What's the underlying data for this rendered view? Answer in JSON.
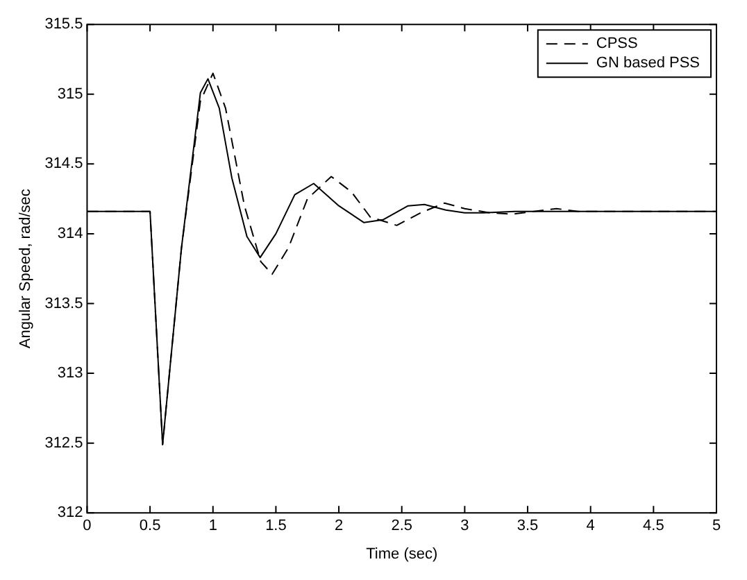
{
  "chart_data": {
    "type": "line",
    "xlabel": "Time (sec)",
    "ylabel": "Angular Speed, rad/sec",
    "xlim": [
      0,
      5
    ],
    "xticks": [
      0,
      0.5,
      1,
      1.5,
      2,
      2.5,
      3,
      3.5,
      4,
      4.5,
      5
    ],
    "ylim": [
      312,
      315.5
    ],
    "yticks": [
      312,
      312.5,
      313,
      313.5,
      314,
      314.5,
      315,
      315.5
    ],
    "grid": false,
    "legend": "top right",
    "marker": "none",
    "series": [
      {
        "name": "CPSS",
        "color": "#000000",
        "line_style": "dashed",
        "x": [
          0,
          0.5,
          0.6,
          0.75,
          0.9,
          1.0,
          1.1,
          1.25,
          1.38,
          1.47,
          1.6,
          1.75,
          1.94,
          2.1,
          2.25,
          2.46,
          2.65,
          2.84,
          3.0,
          3.2,
          3.375,
          3.55,
          3.73,
          3.9,
          5
        ],
        "values": [
          314.16,
          314.16,
          312.49,
          313.9,
          314.95,
          315.15,
          314.9,
          314.2,
          313.8,
          313.71,
          313.9,
          314.25,
          314.41,
          314.3,
          314.12,
          314.06,
          314.15,
          314.22,
          314.18,
          314.15,
          314.14,
          314.16,
          314.18,
          314.16,
          314.16
        ]
      },
      {
        "name": "GN based PSS",
        "color": "#000000",
        "line_style": "solid",
        "x": [
          0,
          0.5,
          0.6,
          0.75,
          0.9,
          0.96,
          1.05,
          1.15,
          1.27,
          1.375,
          1.5,
          1.65,
          1.8,
          2.0,
          2.2,
          2.35,
          2.55,
          2.68,
          2.85,
          3.0,
          3.15,
          3.4,
          5
        ],
        "values": [
          314.16,
          314.16,
          312.49,
          313.9,
          315.01,
          315.11,
          314.9,
          314.4,
          313.98,
          313.83,
          314.0,
          314.28,
          314.36,
          314.2,
          314.08,
          314.1,
          314.2,
          314.21,
          314.17,
          314.15,
          314.15,
          314.16,
          314.16
        ]
      }
    ]
  }
}
